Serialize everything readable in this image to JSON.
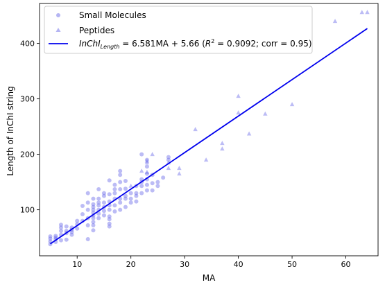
{
  "chart_data": {
    "type": "scatter",
    "xlabel": "MA",
    "ylabel": "Length of InChI string",
    "xlim": [
      3,
      66
    ],
    "ylim": [
      17,
      472
    ],
    "xticks": [
      10,
      20,
      30,
      40,
      50,
      60
    ],
    "yticks": [
      100,
      200,
      300,
      400
    ],
    "grid": false,
    "legend_position": "top-left",
    "colors": {
      "points": "#6b6be8",
      "fit_line": "#0000ee"
    },
    "legend": {
      "small_molecules": "Small Molecules",
      "peptides": "Peptides",
      "fit_prefix": "InChI",
      "fit_subscript": "Length",
      "fit_equation": " = 6.581MA + 5.66 (",
      "fit_r": "R",
      "fit_r_sup": "2",
      "fit_tail": " = 0.9092; corr = 0.95)"
    },
    "fit_line": {
      "slope": 6.581,
      "intercept": 5.66,
      "x": [
        5,
        64
      ]
    },
    "series": [
      {
        "name": "Small Molecules",
        "marker": "circle",
        "points": [
          [
            5,
            38
          ],
          [
            5,
            43
          ],
          [
            5,
            48
          ],
          [
            5,
            52
          ],
          [
            6,
            42
          ],
          [
            6,
            47
          ],
          [
            6,
            50
          ],
          [
            6,
            53
          ],
          [
            7,
            45
          ],
          [
            7,
            55
          ],
          [
            7,
            62
          ],
          [
            7,
            68
          ],
          [
            7,
            73
          ],
          [
            8,
            46
          ],
          [
            8,
            58
          ],
          [
            8,
            62
          ],
          [
            8,
            70
          ],
          [
            9,
            55
          ],
          [
            9,
            60
          ],
          [
            9,
            64
          ],
          [
            9,
            68
          ],
          [
            10,
            66
          ],
          [
            10,
            74
          ],
          [
            10,
            80
          ],
          [
            11,
            80
          ],
          [
            11,
            92
          ],
          [
            11,
            107
          ],
          [
            12,
            47
          ],
          [
            12,
            72
          ],
          [
            12,
            85
          ],
          [
            12,
            100
          ],
          [
            12,
            113
          ],
          [
            12,
            130
          ],
          [
            13,
            63
          ],
          [
            13,
            72
          ],
          [
            13,
            78
          ],
          [
            13,
            85
          ],
          [
            13,
            90
          ],
          [
            13,
            95
          ],
          [
            13,
            100
          ],
          [
            13,
            105
          ],
          [
            13,
            110
          ],
          [
            13,
            120
          ],
          [
            14,
            85
          ],
          [
            14,
            93
          ],
          [
            14,
            100
          ],
          [
            14,
            108
          ],
          [
            14,
            113
          ],
          [
            14,
            120
          ],
          [
            14,
            137
          ],
          [
            15,
            90
          ],
          [
            15,
            98
          ],
          [
            15,
            105
          ],
          [
            15,
            113
          ],
          [
            15,
            125
          ],
          [
            15,
            130
          ],
          [
            16,
            70
          ],
          [
            16,
            75
          ],
          [
            16,
            83
          ],
          [
            16,
            88
          ],
          [
            16,
            100
          ],
          [
            16,
            108
          ],
          [
            16,
            115
          ],
          [
            16,
            128
          ],
          [
            16,
            153
          ],
          [
            17,
            97
          ],
          [
            17,
            108
          ],
          [
            17,
            120
          ],
          [
            17,
            130
          ],
          [
            17,
            137
          ],
          [
            17,
            145
          ],
          [
            18,
            100
          ],
          [
            18,
            113
          ],
          [
            18,
            120
          ],
          [
            18,
            137
          ],
          [
            18,
            150
          ],
          [
            18,
            163
          ],
          [
            18,
            170
          ],
          [
            19,
            105
          ],
          [
            19,
            120
          ],
          [
            19,
            125
          ],
          [
            19,
            138
          ],
          [
            19,
            152
          ],
          [
            20,
            113
          ],
          [
            20,
            120
          ],
          [
            20,
            130
          ],
          [
            21,
            115
          ],
          [
            21,
            125
          ],
          [
            21,
            130
          ],
          [
            21,
            143
          ],
          [
            22,
            130
          ],
          [
            22,
            143
          ],
          [
            22,
            150
          ],
          [
            22,
            155
          ],
          [
            22,
            200
          ],
          [
            23,
            135
          ],
          [
            23,
            145
          ],
          [
            23,
            155
          ],
          [
            23,
            165
          ],
          [
            23,
            178
          ],
          [
            23,
            190
          ],
          [
            24,
            135
          ],
          [
            24,
            148
          ],
          [
            24,
            163
          ],
          [
            25,
            143
          ],
          [
            25,
            150
          ],
          [
            26,
            158
          ],
          [
            27,
            190
          ],
          [
            27,
            195
          ]
        ]
      },
      {
        "name": "Peptides",
        "marker": "triangle",
        "points": [
          [
            20,
            143
          ],
          [
            22,
            170
          ],
          [
            23,
            168
          ],
          [
            23,
            185
          ],
          [
            23,
            188
          ],
          [
            24,
            200
          ],
          [
            27,
            175
          ],
          [
            27,
            185
          ],
          [
            29,
            165
          ],
          [
            29,
            175
          ],
          [
            32,
            245
          ],
          [
            34,
            190
          ],
          [
            37,
            210
          ],
          [
            37,
            220
          ],
          [
            40,
            275
          ],
          [
            40,
            305
          ],
          [
            42,
            237
          ],
          [
            45,
            273
          ],
          [
            50,
            290
          ],
          [
            58,
            440
          ],
          [
            63,
            456
          ],
          [
            64,
            456
          ]
        ]
      }
    ]
  }
}
